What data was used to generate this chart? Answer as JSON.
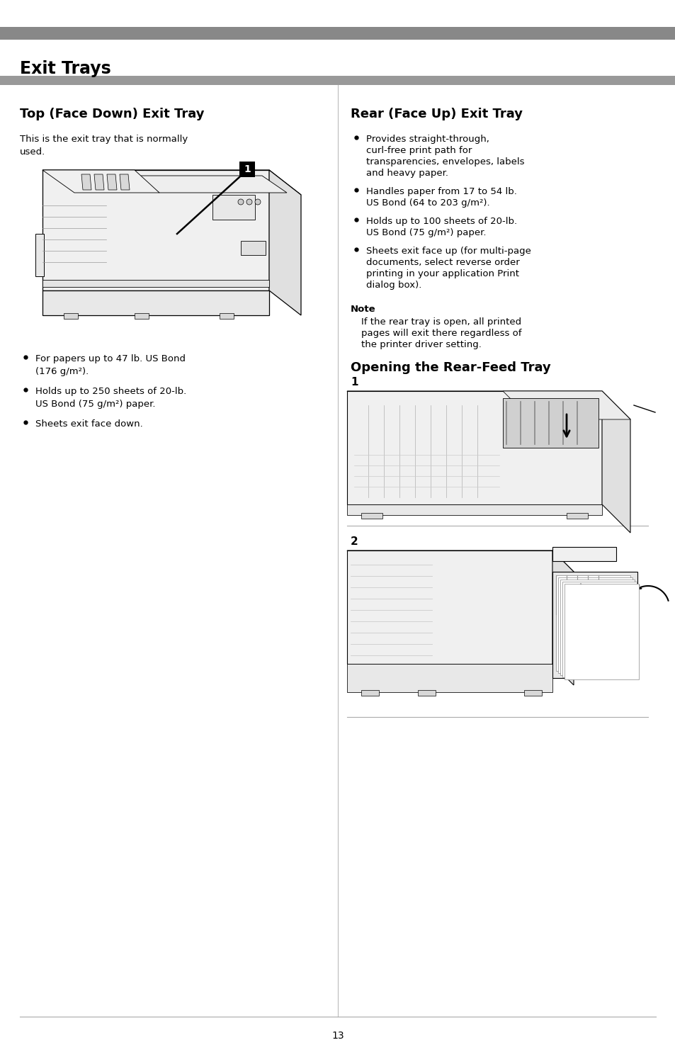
{
  "page_bg": "#ffffff",
  "header_bar_color": "#888888",
  "section_bar_color": "#999999",
  "title": "Exit Trays",
  "title_fontsize": 17,
  "left_section_title": "Top (Face Down) Exit Tray",
  "section_title_fontsize": 13,
  "left_intro": "This is the exit tray that is normally\nused.",
  "left_bullets": [
    "For papers up to 47 lb. US Bond\n(176 g/m²).",
    "Holds up to 250 sheets of 20-lb.\nUS Bond (75 g/m²) paper.",
    "Sheets exit face down."
  ],
  "right_section_title": "Rear (Face Up) Exit Tray",
  "right_bullets": [
    "Provides straight-through,\ncurl-free print path for\ntransparencies, envelopes, labels\nand heavy paper.",
    "Handles paper from 17 to 54 lb.\nUS Bond (64 to 203 g/m²).",
    "Holds up to 100 sheets of 20-lb.\nUS Bond (75 g/m²) paper.",
    "Sheets exit face up (for multi-page\ndocuments, select reverse order\nprinting in your application Print\ndialog box)."
  ],
  "note_title": "Note",
  "note_text": "If the rear tray is open, all printed\npages will exit there regardless of\nthe printer driver setting.",
  "opening_title": "Opening the Rear-Feed Tray",
  "page_number": "13",
  "body_text_fontsize": 9.5,
  "note_title_fontsize": 9.5
}
